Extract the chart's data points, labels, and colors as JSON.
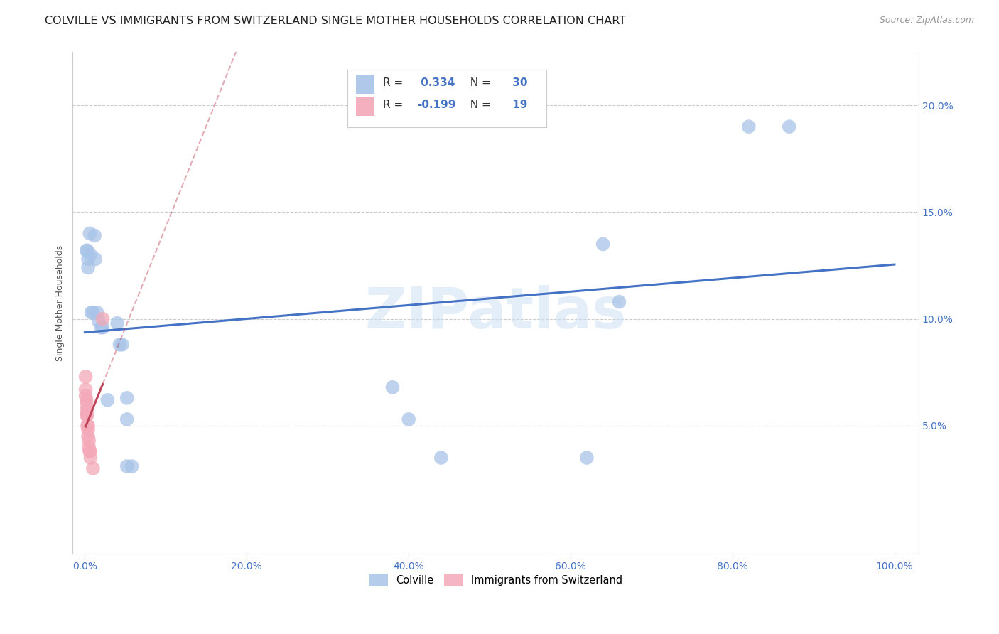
{
  "title": "COLVILLE VS IMMIGRANTS FROM SWITZERLAND SINGLE MOTHER HOUSEHOLDS CORRELATION CHART",
  "source": "Source: ZipAtlas.com",
  "ylabel": "Single Mother Households",
  "watermark": "ZIPatlas",
  "colville_points": [
    [
      0.002,
      0.132
    ],
    [
      0.003,
      0.132
    ],
    [
      0.004,
      0.128
    ],
    [
      0.004,
      0.124
    ],
    [
      0.006,
      0.14
    ],
    [
      0.007,
      0.13
    ],
    [
      0.008,
      0.103
    ],
    [
      0.01,
      0.103
    ],
    [
      0.012,
      0.139
    ],
    [
      0.013,
      0.128
    ],
    [
      0.015,
      0.103
    ],
    [
      0.017,
      0.099
    ],
    [
      0.02,
      0.096
    ],
    [
      0.022,
      0.096
    ],
    [
      0.028,
      0.062
    ],
    [
      0.04,
      0.098
    ],
    [
      0.043,
      0.088
    ],
    [
      0.046,
      0.088
    ],
    [
      0.052,
      0.063
    ],
    [
      0.052,
      0.053
    ],
    [
      0.052,
      0.031
    ],
    [
      0.058,
      0.031
    ],
    [
      0.38,
      0.068
    ],
    [
      0.4,
      0.053
    ],
    [
      0.44,
      0.035
    ],
    [
      0.62,
      0.035
    ],
    [
      0.64,
      0.135
    ],
    [
      0.66,
      0.108
    ],
    [
      0.82,
      0.19
    ],
    [
      0.87,
      0.19
    ]
  ],
  "switzerland_points": [
    [
      0.001,
      0.073
    ],
    [
      0.001,
      0.067
    ],
    [
      0.001,
      0.064
    ],
    [
      0.002,
      0.062
    ],
    [
      0.002,
      0.06
    ],
    [
      0.002,
      0.057
    ],
    [
      0.002,
      0.055
    ],
    [
      0.003,
      0.055
    ],
    [
      0.003,
      0.05
    ],
    [
      0.004,
      0.05
    ],
    [
      0.004,
      0.048
    ],
    [
      0.004,
      0.045
    ],
    [
      0.005,
      0.043
    ],
    [
      0.005,
      0.04
    ],
    [
      0.006,
      0.038
    ],
    [
      0.006,
      0.038
    ],
    [
      0.007,
      0.035
    ],
    [
      0.01,
      0.03
    ],
    [
      0.022,
      0.1
    ]
  ],
  "colville_color": "#a8c4e8",
  "switzerland_color": "#f4a8b8",
  "colville_line_color": "#4472c4",
  "switzerland_line_color": "#c0455a",
  "colville_R": 0.334,
  "colville_N": 30,
  "switzerland_R": -0.199,
  "switzerland_N": 19,
  "xlim": [
    -0.015,
    1.03
  ],
  "ylim": [
    -0.01,
    0.225
  ],
  "xticks": [
    0.0,
    0.2,
    0.4,
    0.6,
    0.8,
    1.0
  ],
  "yticks": [
    0.05,
    0.1,
    0.15,
    0.2
  ],
  "title_fontsize": 11.5,
  "source_fontsize": 9,
  "axis_label_fontsize": 9,
  "tick_fontsize": 10,
  "legend_fontsize": 11
}
